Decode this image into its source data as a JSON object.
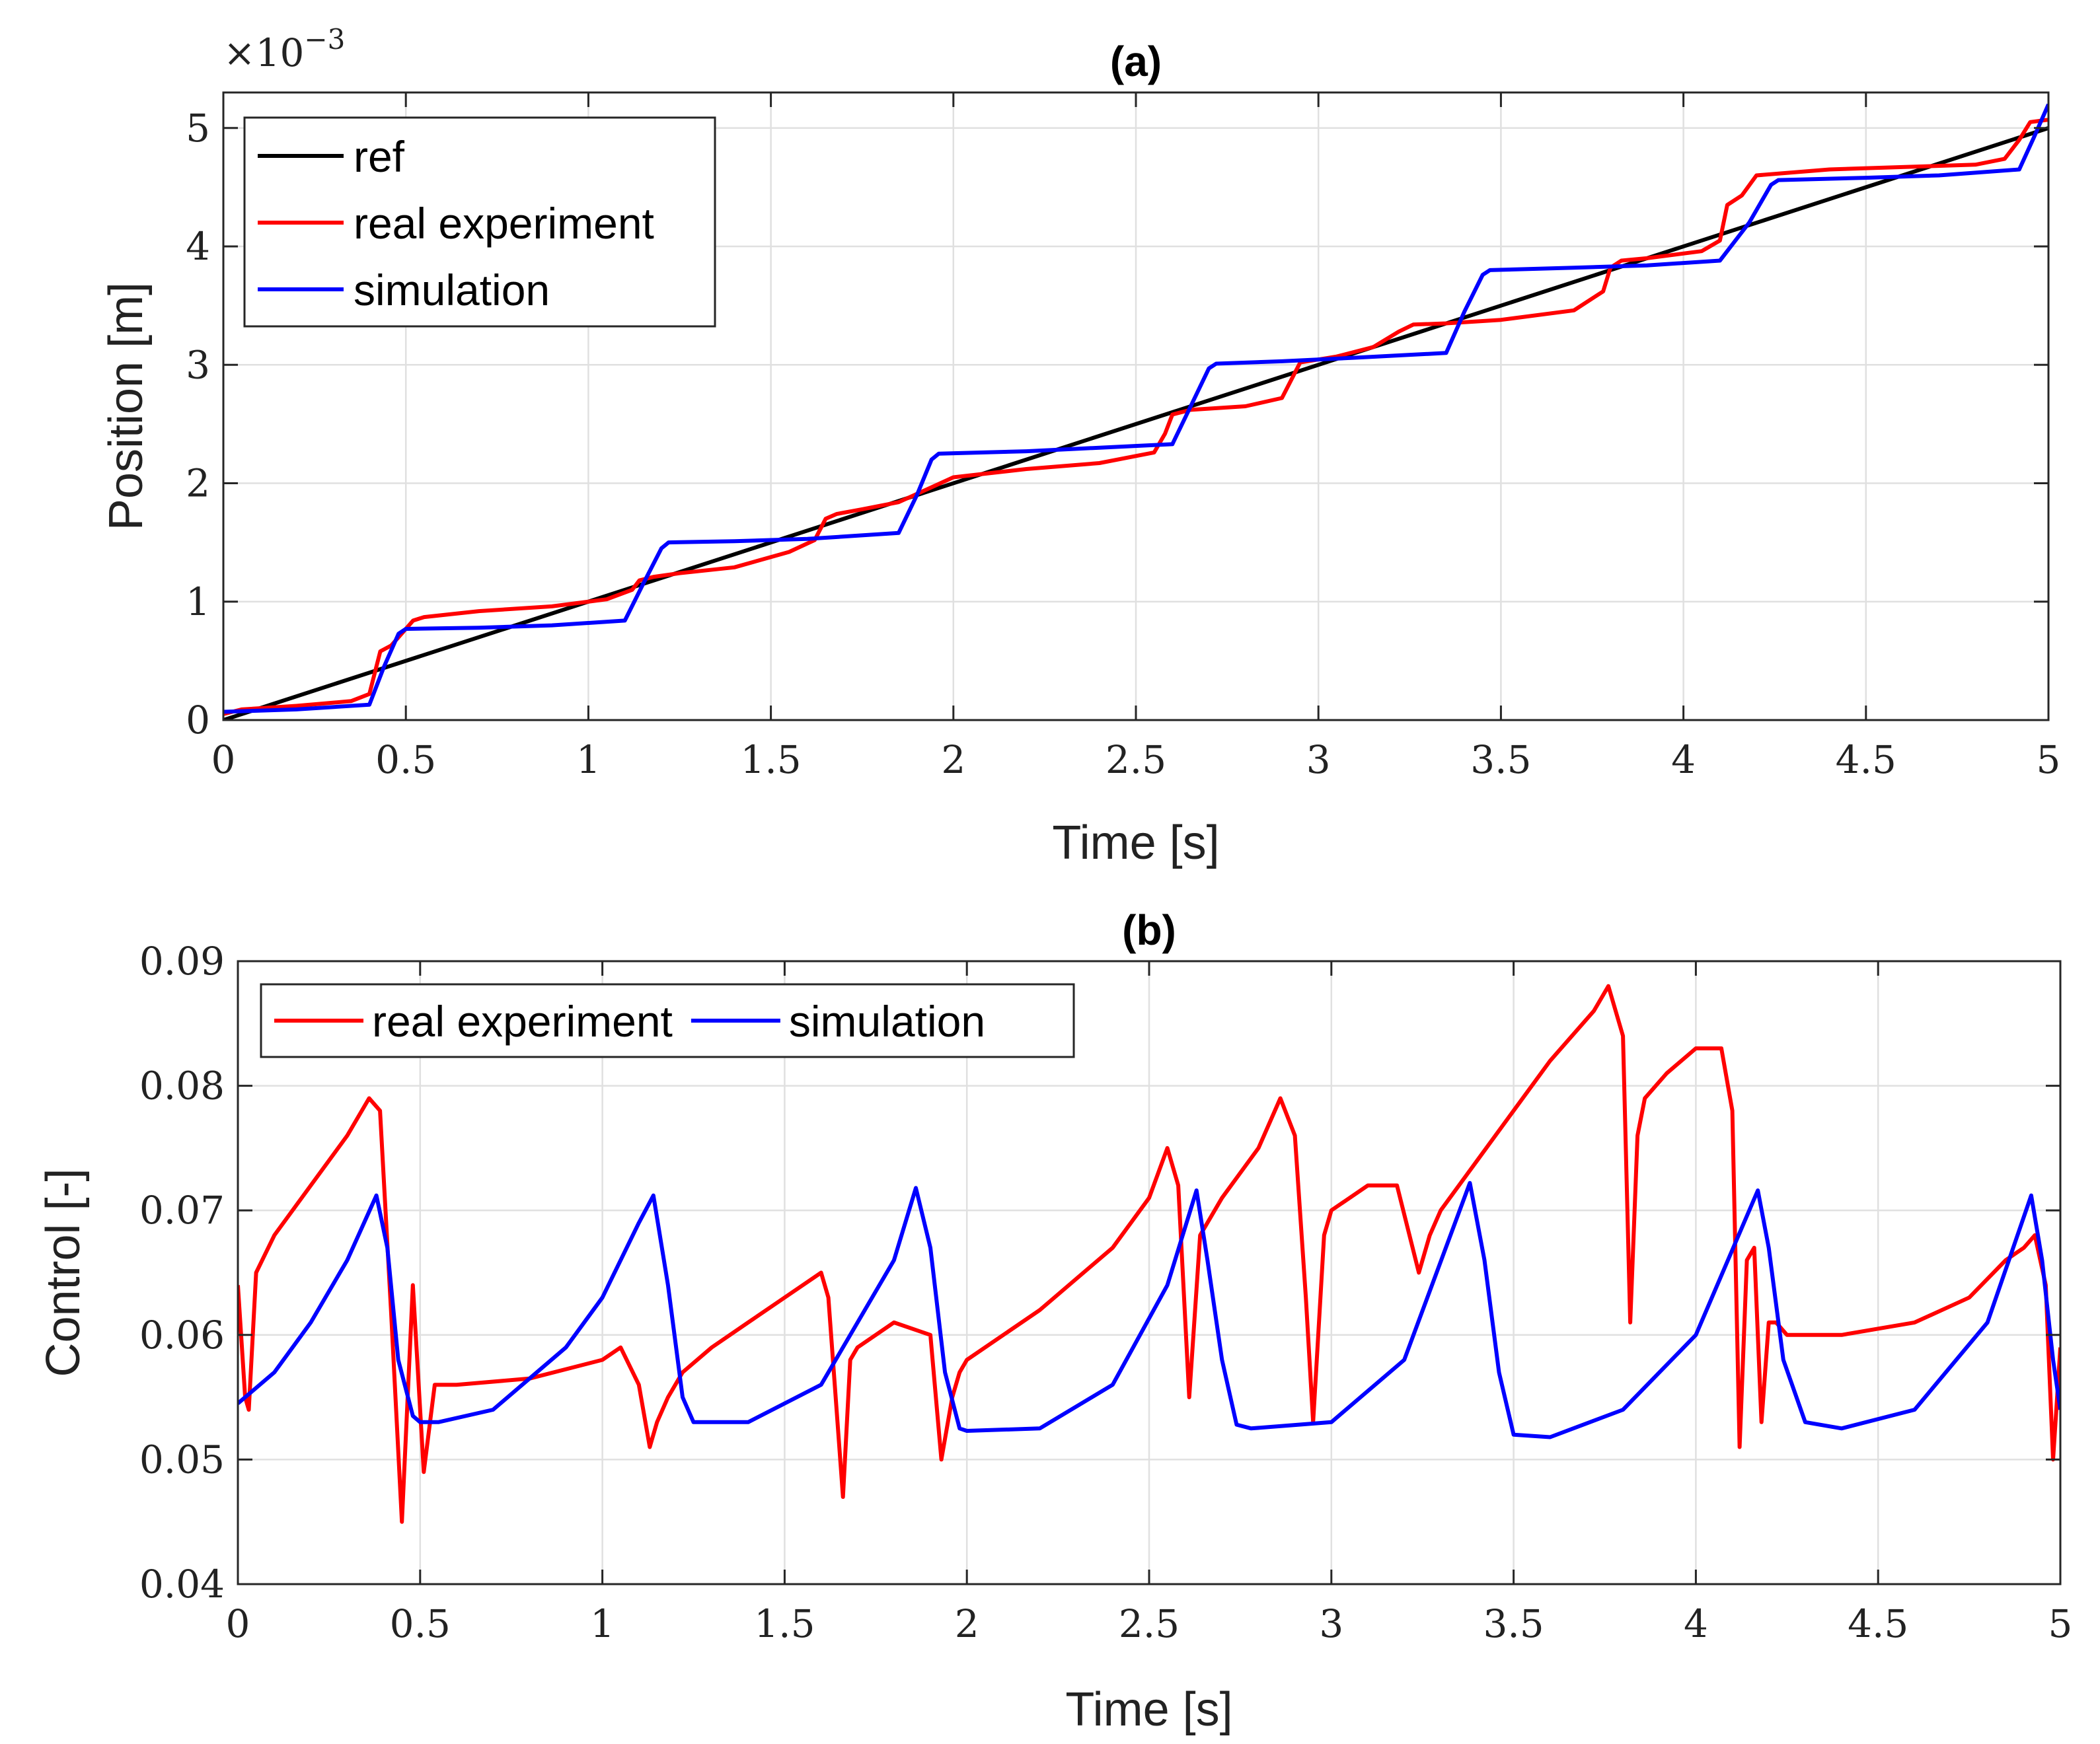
{
  "chart_data": [
    {
      "id": "a",
      "type": "line",
      "title": "(a)",
      "xlabel": "Time [s]",
      "ylabel": "Position [m]",
      "y_multiplier_label": "×10",
      "y_multiplier_exponent": "−3",
      "xlim": [
        0,
        5
      ],
      "ylim": [
        0,
        5.3
      ],
      "x_ticks": [
        0,
        0.5,
        1,
        1.5,
        2,
        2.5,
        3,
        3.5,
        4,
        4.5,
        5
      ],
      "x_tick_labels": [
        "0",
        "0.5",
        "1",
        "1.5",
        "2",
        "2.5",
        "3",
        "3.5",
        "4",
        "4.5",
        "5"
      ],
      "y_ticks": [
        0,
        1,
        2,
        3,
        4,
        5
      ],
      "y_tick_labels": [
        "0",
        "1",
        "2",
        "3",
        "4",
        "5"
      ],
      "grid": true,
      "legend_position": "top-left",
      "legend_layout": "vertical",
      "series": [
        {
          "name": "ref",
          "color": "#000000",
          "x": [
            0,
            5
          ],
          "y": [
            0,
            5.0
          ]
        },
        {
          "name": "real experiment",
          "color": "#ff0000",
          "x": [
            0,
            0.05,
            0.2,
            0.35,
            0.4,
            0.43,
            0.46,
            0.48,
            0.52,
            0.55,
            0.7,
            0.9,
            1.05,
            1.12,
            1.14,
            1.18,
            1.25,
            1.4,
            1.55,
            1.62,
            1.65,
            1.68,
            1.75,
            1.85,
            1.95,
            2.0,
            2.2,
            2.4,
            2.55,
            2.58,
            2.6,
            2.65,
            2.8,
            2.9,
            2.95,
            3.05,
            3.15,
            3.22,
            3.26,
            3.35,
            3.5,
            3.7,
            3.78,
            3.8,
            3.83,
            3.9,
            4.05,
            4.1,
            4.12,
            4.16,
            4.2,
            4.4,
            4.6,
            4.8,
            4.88,
            4.92,
            4.95,
            5.0
          ],
          "y": [
            0.05,
            0.09,
            0.12,
            0.16,
            0.22,
            0.58,
            0.63,
            0.7,
            0.84,
            0.87,
            0.92,
            0.96,
            1.02,
            1.1,
            1.18,
            1.21,
            1.24,
            1.29,
            1.42,
            1.52,
            1.7,
            1.74,
            1.78,
            1.84,
            1.98,
            2.05,
            2.12,
            2.17,
            2.26,
            2.42,
            2.58,
            2.62,
            2.65,
            2.72,
            3.02,
            3.07,
            3.15,
            3.28,
            3.34,
            3.35,
            3.38,
            3.46,
            3.62,
            3.82,
            3.88,
            3.9,
            3.96,
            4.05,
            4.35,
            4.43,
            4.6,
            4.65,
            4.67,
            4.69,
            4.74,
            4.9,
            5.05,
            5.07
          ]
        },
        {
          "name": "simulation",
          "color": "#0000ff",
          "x": [
            0,
            0.2,
            0.4,
            0.44,
            0.48,
            0.5,
            0.7,
            0.9,
            1.1,
            1.15,
            1.2,
            1.22,
            1.4,
            1.6,
            1.85,
            1.9,
            1.94,
            1.96,
            2.2,
            2.4,
            2.6,
            2.65,
            2.7,
            2.72,
            2.9,
            3.1,
            3.35,
            3.4,
            3.45,
            3.47,
            3.7,
            3.9,
            4.1,
            4.18,
            4.24,
            4.26,
            4.5,
            4.7,
            4.92,
            4.96,
            5.0
          ],
          "y": [
            0.07,
            0.09,
            0.13,
            0.45,
            0.73,
            0.77,
            0.78,
            0.8,
            0.84,
            1.15,
            1.45,
            1.5,
            1.51,
            1.53,
            1.58,
            1.9,
            2.2,
            2.25,
            2.27,
            2.3,
            2.33,
            2.65,
            2.97,
            3.01,
            3.03,
            3.06,
            3.1,
            3.45,
            3.76,
            3.8,
            3.82,
            3.84,
            3.88,
            4.2,
            4.52,
            4.56,
            4.58,
            4.6,
            4.65,
            4.92,
            5.2
          ]
        }
      ]
    },
    {
      "id": "b",
      "type": "line",
      "title": "(b)",
      "xlabel": "Time [s]",
      "ylabel": "Control [-]",
      "xlim": [
        0,
        5
      ],
      "ylim": [
        0.04,
        0.09
      ],
      "x_ticks": [
        0,
        0.5,
        1,
        1.5,
        2,
        2.5,
        3,
        3.5,
        4,
        4.5,
        5
      ],
      "x_tick_labels": [
        "0",
        "0.5",
        "1",
        "1.5",
        "2",
        "2.5",
        "3",
        "3.5",
        "4",
        "4.5",
        "5"
      ],
      "y_ticks": [
        0.04,
        0.05,
        0.06,
        0.07,
        0.08,
        0.09
      ],
      "y_tick_labels": [
        "0.04",
        "0.05",
        "0.06",
        "0.07",
        "0.08",
        "0.09"
      ],
      "grid": true,
      "legend_position": "top-left",
      "legend_layout": "horizontal",
      "series": [
        {
          "name": "real experiment",
          "color": "#ff0000",
          "x": [
            0,
            0.02,
            0.03,
            0.05,
            0.1,
            0.2,
            0.3,
            0.36,
            0.39,
            0.42,
            0.45,
            0.48,
            0.51,
            0.54,
            0.56,
            0.6,
            0.8,
            1.0,
            1.05,
            1.1,
            1.13,
            1.15,
            1.18,
            1.22,
            1.3,
            1.4,
            1.5,
            1.6,
            1.62,
            1.66,
            1.68,
            1.7,
            1.8,
            1.9,
            1.93,
            1.96,
            1.98,
            2.0,
            2.2,
            2.4,
            2.5,
            2.55,
            2.58,
            2.61,
            2.64,
            2.7,
            2.8,
            2.86,
            2.9,
            2.93,
            2.95,
            2.98,
            3.0,
            3.1,
            3.18,
            3.24,
            3.27,
            3.3,
            3.4,
            3.5,
            3.6,
            3.72,
            3.76,
            3.8,
            3.82,
            3.84,
            3.86,
            3.92,
            4.0,
            4.07,
            4.1,
            4.12,
            4.14,
            4.16,
            4.18,
            4.2,
            4.22,
            4.25,
            4.3,
            4.4,
            4.6,
            4.75,
            4.85,
            4.9,
            4.93,
            4.96,
            4.98,
            5.0
          ],
          "y": [
            0.064,
            0.055,
            0.054,
            0.065,
            0.068,
            0.072,
            0.076,
            0.079,
            0.078,
            0.062,
            0.045,
            0.064,
            0.049,
            0.056,
            0.056,
            0.056,
            0.0565,
            0.058,
            0.059,
            0.056,
            0.051,
            0.053,
            0.055,
            0.057,
            0.059,
            0.061,
            0.063,
            0.065,
            0.063,
            0.047,
            0.058,
            0.059,
            0.061,
            0.06,
            0.05,
            0.055,
            0.057,
            0.058,
            0.062,
            0.067,
            0.071,
            0.075,
            0.072,
            0.055,
            0.068,
            0.071,
            0.075,
            0.079,
            0.076,
            0.063,
            0.053,
            0.068,
            0.07,
            0.072,
            0.072,
            0.065,
            0.068,
            0.07,
            0.074,
            0.078,
            0.082,
            0.086,
            0.088,
            0.084,
            0.061,
            0.076,
            0.079,
            0.081,
            0.083,
            0.083,
            0.078,
            0.051,
            0.066,
            0.067,
            0.053,
            0.061,
            0.061,
            0.06,
            0.06,
            0.06,
            0.061,
            0.063,
            0.066,
            0.067,
            0.068,
            0.064,
            0.05,
            0.059
          ]
        },
        {
          "name": "simulation",
          "color": "#0000ff",
          "x": [
            0,
            0.1,
            0.2,
            0.3,
            0.38,
            0.41,
            0.44,
            0.48,
            0.5,
            0.55,
            0.7,
            0.9,
            1.0,
            1.1,
            1.14,
            1.18,
            1.22,
            1.25,
            1.4,
            1.6,
            1.8,
            1.86,
            1.9,
            1.94,
            1.98,
            2.0,
            2.2,
            2.4,
            2.55,
            2.63,
            2.66,
            2.7,
            2.74,
            2.78,
            3.0,
            3.2,
            3.38,
            3.42,
            3.46,
            3.5,
            3.6,
            3.8,
            4.0,
            4.17,
            4.2,
            4.24,
            4.3,
            4.4,
            4.6,
            4.8,
            4.92,
            4.95,
            4.98,
            5.0
          ],
          "y": [
            0.0545,
            0.057,
            0.061,
            0.066,
            0.0712,
            0.067,
            0.058,
            0.0535,
            0.053,
            0.053,
            0.054,
            0.059,
            0.063,
            0.069,
            0.0712,
            0.064,
            0.055,
            0.053,
            0.053,
            0.056,
            0.066,
            0.0718,
            0.067,
            0.057,
            0.0525,
            0.0523,
            0.0525,
            0.056,
            0.064,
            0.0716,
            0.066,
            0.058,
            0.0528,
            0.0525,
            0.053,
            0.058,
            0.0722,
            0.066,
            0.057,
            0.052,
            0.0518,
            0.054,
            0.06,
            0.0716,
            0.067,
            0.058,
            0.053,
            0.0525,
            0.054,
            0.061,
            0.0712,
            0.066,
            0.058,
            0.054
          ]
        }
      ]
    }
  ]
}
